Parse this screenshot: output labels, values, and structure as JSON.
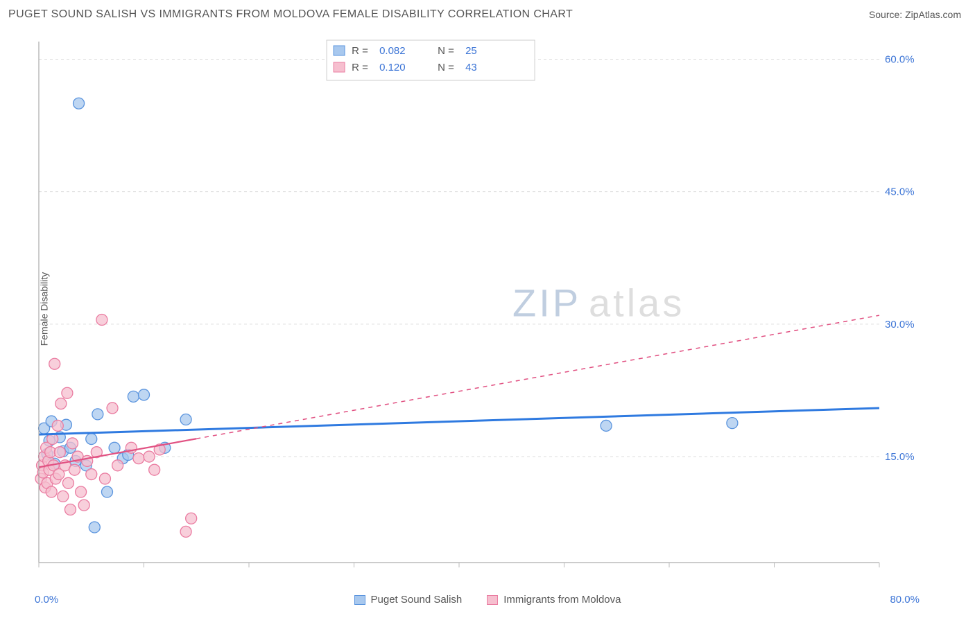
{
  "header": {
    "title": "PUGET SOUND SALISH VS IMMIGRANTS FROM MOLDOVA FEMALE DISABILITY CORRELATION CHART",
    "source_prefix": "Source: ",
    "source_name": "ZipAtlas.com"
  },
  "axes": {
    "ylabel": "Female Disability",
    "x_min": 0,
    "x_max": 80,
    "y_min": 3,
    "y_max": 62,
    "x_label_min": "0.0%",
    "x_label_max": "80.0%",
    "y_ticks": [
      {
        "v": 15.0,
        "label": "15.0%"
      },
      {
        "v": 30.0,
        "label": "30.0%"
      },
      {
        "v": 45.0,
        "label": "45.0%"
      },
      {
        "v": 60.0,
        "label": "60.0%"
      }
    ],
    "x_tick_step": 10
  },
  "series": [
    {
      "key": "salish",
      "label": "Puget Sound Salish",
      "fill": "#a8c8ee",
      "stroke": "#5a94de",
      "line_color": "#2f7ae0",
      "r": 0.082,
      "n": 25,
      "r_text": "0.082",
      "n_text": "25",
      "marker_r": 8,
      "trend": {
        "x1": 0,
        "y1": 17.5,
        "x2": 80,
        "y2": 20.5,
        "solid_until_x": 80,
        "width": 3
      },
      "points": [
        [
          0.5,
          18.2
        ],
        [
          0.8,
          15.3
        ],
        [
          1.0,
          16.8
        ],
        [
          1.2,
          19.0
        ],
        [
          1.5,
          14.2
        ],
        [
          2.0,
          17.2
        ],
        [
          2.3,
          15.6
        ],
        [
          2.6,
          18.6
        ],
        [
          3.0,
          16.0
        ],
        [
          3.5,
          14.5
        ],
        [
          3.8,
          55.0
        ],
        [
          4.5,
          14.0
        ],
        [
          5.0,
          17.0
        ],
        [
          5.3,
          7.0
        ],
        [
          5.6,
          19.8
        ],
        [
          6.5,
          11.0
        ],
        [
          7.2,
          16.0
        ],
        [
          8.0,
          14.8
        ],
        [
          8.5,
          15.2
        ],
        [
          9.0,
          21.8
        ],
        [
          10.0,
          22.0
        ],
        [
          12.0,
          16.0
        ],
        [
          14.0,
          19.2
        ],
        [
          54.0,
          18.5
        ],
        [
          66.0,
          18.8
        ]
      ]
    },
    {
      "key": "moldova",
      "label": "Immigrants from Moldova",
      "fill": "#f6bfcf",
      "stroke": "#ea7ca1",
      "line_color": "#e15182",
      "r": 0.12,
      "n": 43,
      "r_text": "0.120",
      "n_text": "43",
      "marker_r": 8,
      "trend": {
        "x1": 0,
        "y1": 13.8,
        "x2": 80,
        "y2": 31.0,
        "solid_until_x": 15,
        "width": 2.2
      },
      "points": [
        [
          0.2,
          12.5
        ],
        [
          0.3,
          14.0
        ],
        [
          0.4,
          13.2
        ],
        [
          0.5,
          15.0
        ],
        [
          0.6,
          11.5
        ],
        [
          0.7,
          16.0
        ],
        [
          0.8,
          12.0
        ],
        [
          0.9,
          14.5
        ],
        [
          1.0,
          13.5
        ],
        [
          1.1,
          15.5
        ],
        [
          1.2,
          11.0
        ],
        [
          1.3,
          17.0
        ],
        [
          1.4,
          14.0
        ],
        [
          1.5,
          25.5
        ],
        [
          1.6,
          12.5
        ],
        [
          1.8,
          18.5
        ],
        [
          1.9,
          13.0
        ],
        [
          2.0,
          15.5
        ],
        [
          2.1,
          21.0
        ],
        [
          2.3,
          10.5
        ],
        [
          2.5,
          14.0
        ],
        [
          2.7,
          22.2
        ],
        [
          2.8,
          12.0
        ],
        [
          3.0,
          9.0
        ],
        [
          3.2,
          16.5
        ],
        [
          3.4,
          13.5
        ],
        [
          3.7,
          15.0
        ],
        [
          4.0,
          11.0
        ],
        [
          4.3,
          9.5
        ],
        [
          4.6,
          14.5
        ],
        [
          5.0,
          13.0
        ],
        [
          5.5,
          15.5
        ],
        [
          6.0,
          30.5
        ],
        [
          6.3,
          12.5
        ],
        [
          7.0,
          20.5
        ],
        [
          7.5,
          14.0
        ],
        [
          8.8,
          16.0
        ],
        [
          9.5,
          14.8
        ],
        [
          10.5,
          15.0
        ],
        [
          11.0,
          13.5
        ],
        [
          11.5,
          15.8
        ],
        [
          14.0,
          6.5
        ],
        [
          14.5,
          8.0
        ]
      ]
    }
  ],
  "colors": {
    "text": "#555555",
    "axis_value": "#3b74d6",
    "grid": "#dddddd",
    "border": "#cccccc",
    "bg": "#ffffff"
  },
  "watermark": {
    "text_a": "ZIP",
    "text_b": "atlas",
    "color_a": "#8da7c7",
    "color_b": "#c4c4c4"
  },
  "bottom_legend": {
    "items": [
      {
        "label": "Puget Sound Salish",
        "fill": "#a8c8ee",
        "stroke": "#5a94de"
      },
      {
        "label": "Immigrants from Moldova",
        "fill": "#f6bfcf",
        "stroke": "#ea7ca1"
      }
    ]
  }
}
